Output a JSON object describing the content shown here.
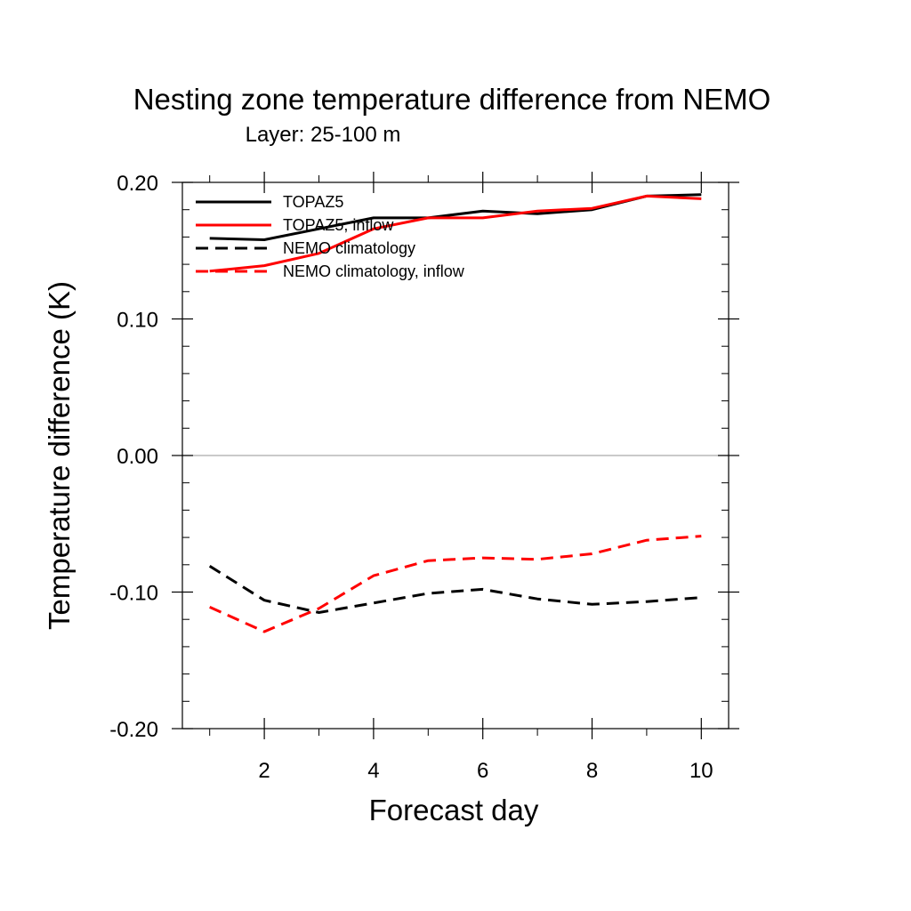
{
  "chart_data": {
    "type": "line",
    "title": "Nesting zone temperature difference from NEMO",
    "subtitle": "Layer: 25-100 m",
    "xlabel": "Forecast day",
    "ylabel": "Temperature difference (K)",
    "xlim": [
      0.5,
      10.5
    ],
    "ylim": [
      -0.2,
      0.2
    ],
    "x_ticks": [
      2,
      4,
      6,
      8,
      10
    ],
    "y_ticks": [
      -0.2,
      -0.1,
      0.0,
      0.1,
      0.2
    ],
    "x_tick_labels": [
      "2",
      "4",
      "6",
      "8",
      "10"
    ],
    "y_tick_labels": [
      "-0.20",
      "-0.10",
      "0.00",
      "0.10",
      "0.20"
    ],
    "zero_line": true,
    "grid": false,
    "legend_position": "top-left",
    "x": [
      1,
      2,
      3,
      4,
      5,
      6,
      7,
      8,
      9,
      10
    ],
    "series": [
      {
        "name": "TOPAZ5",
        "color": "#000000",
        "dash": "solid",
        "values": [
          0.159,
          0.158,
          0.166,
          0.174,
          0.174,
          0.179,
          0.177,
          0.18,
          0.19,
          0.191
        ]
      },
      {
        "name": "TOPAZ5, inflow",
        "color": "#ff0000",
        "dash": "solid",
        "values": [
          0.135,
          0.139,
          0.148,
          0.166,
          0.174,
          0.174,
          0.179,
          0.181,
          0.19,
          0.188
        ]
      },
      {
        "name": "NEMO climatology",
        "color": "#000000",
        "dash": "dashed",
        "values": [
          -0.081,
          -0.106,
          -0.115,
          -0.108,
          -0.101,
          -0.098,
          -0.105,
          -0.109,
          -0.107,
          -0.104
        ]
      },
      {
        "name": "NEMO climatology, inflow",
        "color": "#ff0000",
        "dash": "dashed",
        "values": [
          -0.111,
          -0.129,
          -0.112,
          -0.088,
          -0.077,
          -0.075,
          -0.076,
          -0.072,
          -0.062,
          -0.059
        ]
      }
    ]
  }
}
